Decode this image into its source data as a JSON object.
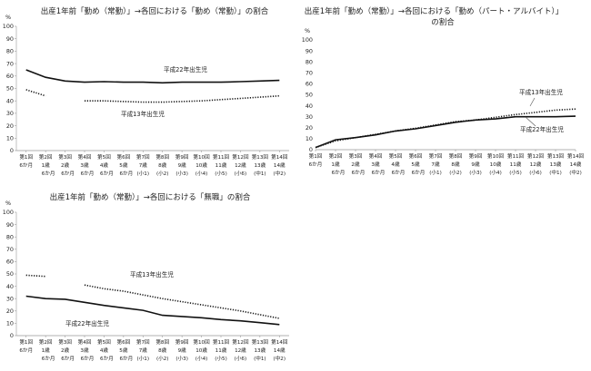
{
  "chart_data": [
    {
      "type": "line",
      "title": "出産1年前「勤め（常勤）」→各回における「勤め（常勤）」の割合",
      "ylabel": "%",
      "ylim": [
        0,
        100
      ],
      "yticks": [
        0,
        10,
        20,
        30,
        40,
        50,
        60,
        70,
        80,
        90,
        100
      ],
      "categories": [
        [
          "第1回",
          "6か月"
        ],
        [
          "第2回",
          "1歳",
          "6か月"
        ],
        [
          "第3回",
          "2歳",
          "6か月"
        ],
        [
          "第4回",
          "3歳",
          "6か月"
        ],
        [
          "第5回",
          "4歳",
          "6か月"
        ],
        [
          "第6回",
          "5歳",
          "6か月"
        ],
        [
          "第7回",
          "7歳",
          "(小1)"
        ],
        [
          "第8回",
          "8歳",
          "(小2)"
        ],
        [
          "第9回",
          "9歳",
          "(小3)"
        ],
        [
          "第10回",
          "10歳",
          "(小4)"
        ],
        [
          "第11回",
          "11歳",
          "(小5)"
        ],
        [
          "第12回",
          "12歳",
          "(小6)"
        ],
        [
          "第13回",
          "13歳",
          "(中1)"
        ],
        [
          "第14回",
          "14歳",
          "(中2)"
        ]
      ],
      "series": [
        {
          "name": "平成22年出生児",
          "style": "solid",
          "values": [
            65,
            59,
            56,
            55,
            55.5,
            55,
            55,
            54.5,
            55,
            55,
            55,
            55.5,
            56,
            56.5
          ]
        },
        {
          "name": "平成13年出生児",
          "style": "dotted",
          "values": [
            49,
            44,
            null,
            40,
            40,
            39.5,
            39,
            39,
            39.5,
            40,
            41,
            42,
            43,
            44
          ]
        }
      ]
    },
    {
      "type": "line",
      "title": "出産1年前「勤め（常勤）」→各回における「勤め（パート・アルバイト）」の割合",
      "ylabel": "%",
      "ylim": [
        0,
        100
      ],
      "yticks": [
        0,
        10,
        20,
        30,
        40,
        50,
        60,
        70,
        80,
        90,
        100
      ],
      "categories": [
        [
          "第1回",
          "6か月"
        ],
        [
          "第2回",
          "1歳",
          "6か月"
        ],
        [
          "第3回",
          "2歳",
          "6か月"
        ],
        [
          "第4回",
          "3歳",
          "6か月"
        ],
        [
          "第5回",
          "4歳",
          "6か月"
        ],
        [
          "第6回",
          "5歳",
          "6か月"
        ],
        [
          "第7回",
          "7歳",
          "(小1)"
        ],
        [
          "第8回",
          "8歳",
          "(小2)"
        ],
        [
          "第9回",
          "9歳",
          "(小3)"
        ],
        [
          "第10回",
          "10歳",
          "(小4)"
        ],
        [
          "第11回",
          "11歳",
          "(小5)"
        ],
        [
          "第12回",
          "12歳",
          "(小6)"
        ],
        [
          "第13回",
          "13歳",
          "(中1)"
        ],
        [
          "第14回",
          "14歳",
          "(中2)"
        ]
      ],
      "series": [
        {
          "name": "平成22年出生児",
          "style": "solid",
          "values": [
            2,
            9,
            11,
            13.5,
            17,
            19,
            22,
            25,
            27,
            28,
            30,
            30,
            30,
            30.5
          ]
        },
        {
          "name": "平成13年出生児",
          "style": "dotted",
          "values": [
            2,
            8,
            11,
            14,
            17,
            19.5,
            22.5,
            25.5,
            27,
            29.5,
            32,
            34,
            36,
            37
          ]
        }
      ]
    },
    {
      "type": "line",
      "title": "出産1年前「勤め（常勤）」→各回における「無職」の割合",
      "ylabel": "%",
      "ylim": [
        0,
        100
      ],
      "yticks": [
        0,
        10,
        20,
        30,
        40,
        50,
        60,
        70,
        80,
        90,
        100
      ],
      "categories": [
        [
          "第1回",
          "6か月"
        ],
        [
          "第2回",
          "1歳",
          "6か月"
        ],
        [
          "第3回",
          "2歳",
          "6か月"
        ],
        [
          "第4回",
          "3歳",
          "6か月"
        ],
        [
          "第5回",
          "4歳",
          "6か月"
        ],
        [
          "第6回",
          "5歳",
          "6か月"
        ],
        [
          "第7回",
          "7歳",
          "(小1)"
        ],
        [
          "第8回",
          "8歳",
          "(小2)"
        ],
        [
          "第9回",
          "9歳",
          "(小3)"
        ],
        [
          "第10回",
          "10歳",
          "(小4)"
        ],
        [
          "第11回",
          "11歳",
          "(小5)"
        ],
        [
          "第12回",
          "12歳",
          "(小6)"
        ],
        [
          "第13回",
          "13歳",
          "(中1)"
        ],
        [
          "第14回",
          "14歳",
          "(中2)"
        ]
      ],
      "series": [
        {
          "name": "平成22年出生児",
          "style": "solid",
          "values": [
            32,
            30,
            29.5,
            27,
            24.5,
            22.5,
            20.5,
            16.5,
            15.5,
            14.5,
            13,
            12,
            10.5,
            9
          ]
        },
        {
          "name": "平成13年出生児",
          "style": "dotted",
          "values": [
            49,
            48,
            null,
            41,
            38,
            36,
            33,
            30,
            27.5,
            25,
            22.5,
            20,
            17,
            14
          ]
        }
      ]
    }
  ]
}
